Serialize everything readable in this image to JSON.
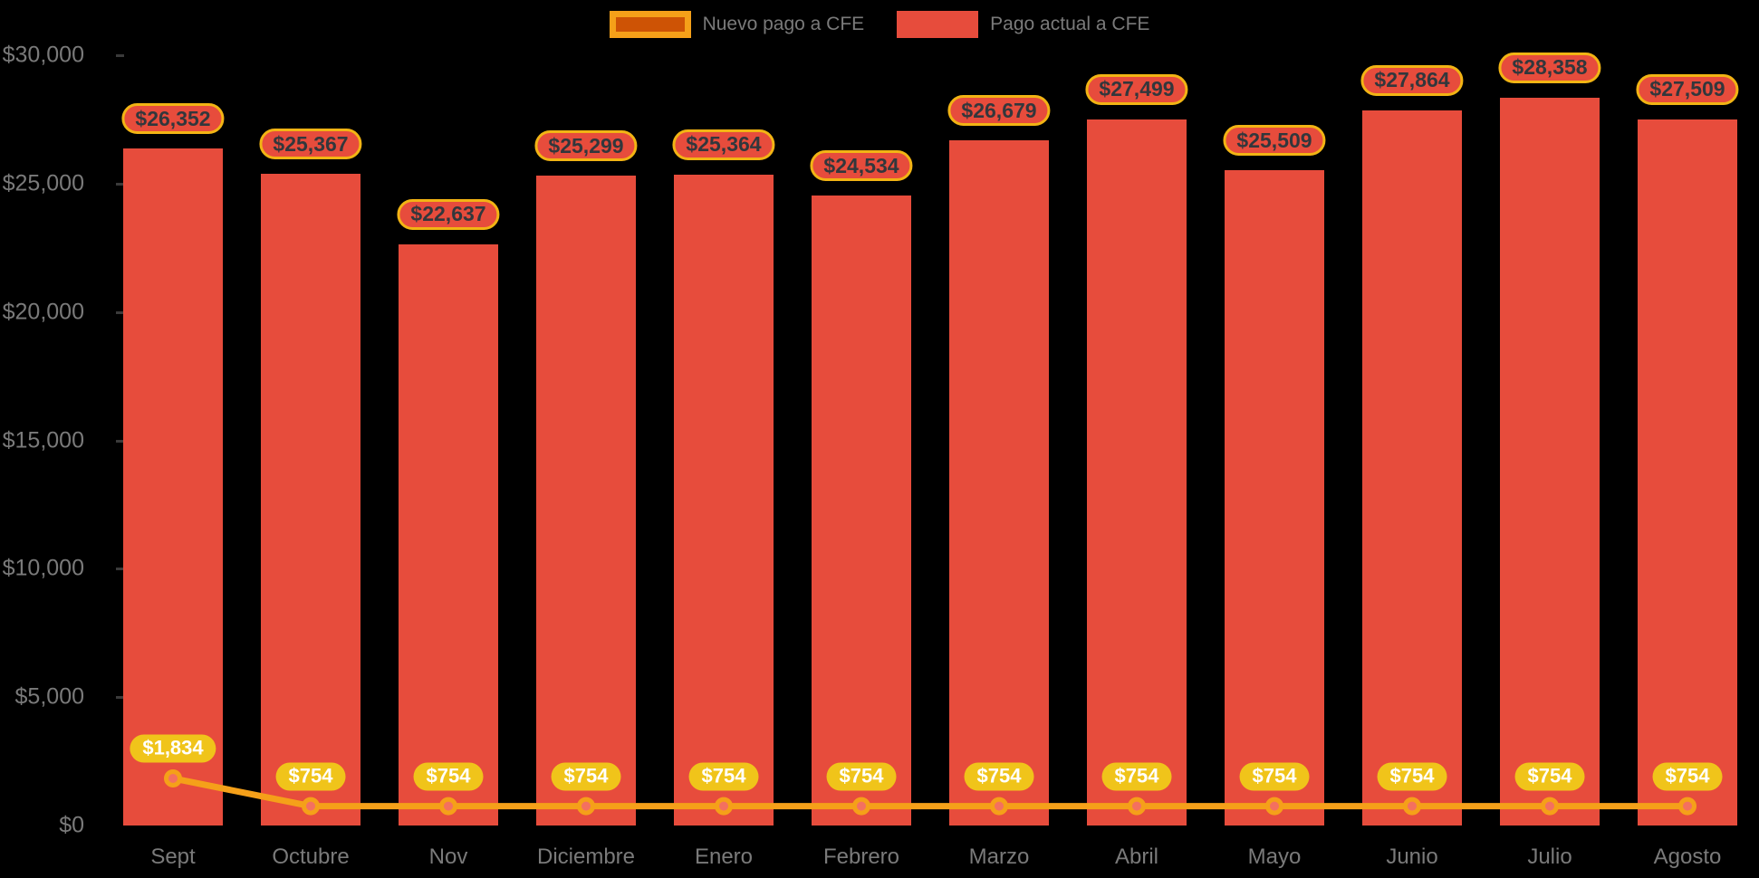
{
  "legend": {
    "items": [
      {
        "label": "Nuevo pago a CFE",
        "series_type": "line",
        "swatch_fill": "#ce5305",
        "swatch_border": "#f5a019"
      },
      {
        "label": "Pago actual a CFE",
        "series_type": "bar",
        "swatch_fill": "#e74c3c"
      }
    ]
  },
  "y_axis": {
    "ticks": [
      {
        "label": "$30,000",
        "value": 30000
      },
      {
        "label": "$25,000",
        "value": 25000
      },
      {
        "label": "$20,000",
        "value": 20000
      },
      {
        "label": "$15,000",
        "value": 15000
      },
      {
        "label": "$10,000",
        "value": 10000
      },
      {
        "label": "$5,000",
        "value": 5000
      },
      {
        "label": "$0",
        "value": 0
      }
    ]
  },
  "chart_data": {
    "type": "bar+line",
    "categories": [
      "Sept",
      "Octubre",
      "Nov",
      "Diciembre",
      "Enero",
      "Febrero",
      "Marzo",
      "Abril",
      "Mayo",
      "Junio",
      "Julio",
      "Agosto"
    ],
    "series": [
      {
        "name": "Pago actual a CFE",
        "type": "bar",
        "values": [
          26352,
          25367,
          22637,
          25299,
          25364,
          24534,
          26679,
          27499,
          25509,
          27864,
          28358,
          27509
        ],
        "labels": [
          "$26,352",
          "$25,367",
          "$22,637",
          "$25,299",
          "$25,364",
          "$24,534",
          "$26,679",
          "$27,499",
          "$25,509",
          "$27,864",
          "$28,358",
          "$27,509"
        ]
      },
      {
        "name": "Nuevo pago a CFE",
        "type": "line",
        "values": [
          1834,
          754,
          754,
          754,
          754,
          754,
          754,
          754,
          754,
          754,
          754,
          754
        ],
        "labels": [
          "$1,834",
          "$754",
          "$754",
          "$754",
          "$754",
          "$754",
          "$754",
          "$754",
          "$754",
          "$754",
          "$754",
          "$754"
        ]
      }
    ],
    "title": "",
    "xlabel": "",
    "ylabel": "",
    "ylim": [
      0,
      30000
    ],
    "grid": false,
    "legend_position": "top-center"
  },
  "colors": {
    "background": "#000000",
    "bar": "#e74c3c",
    "line": "#f5a019",
    "point_fill": "#f4705f",
    "point_ring": "#f5a019",
    "bar_label_bg": "#e74c3c",
    "bar_label_border": "#f2b414",
    "bar_label_text": "#32373c",
    "line_label_bg": "#f0c41a",
    "line_label_text": "#ffffff",
    "axis_text": "#7a7a7a"
  }
}
